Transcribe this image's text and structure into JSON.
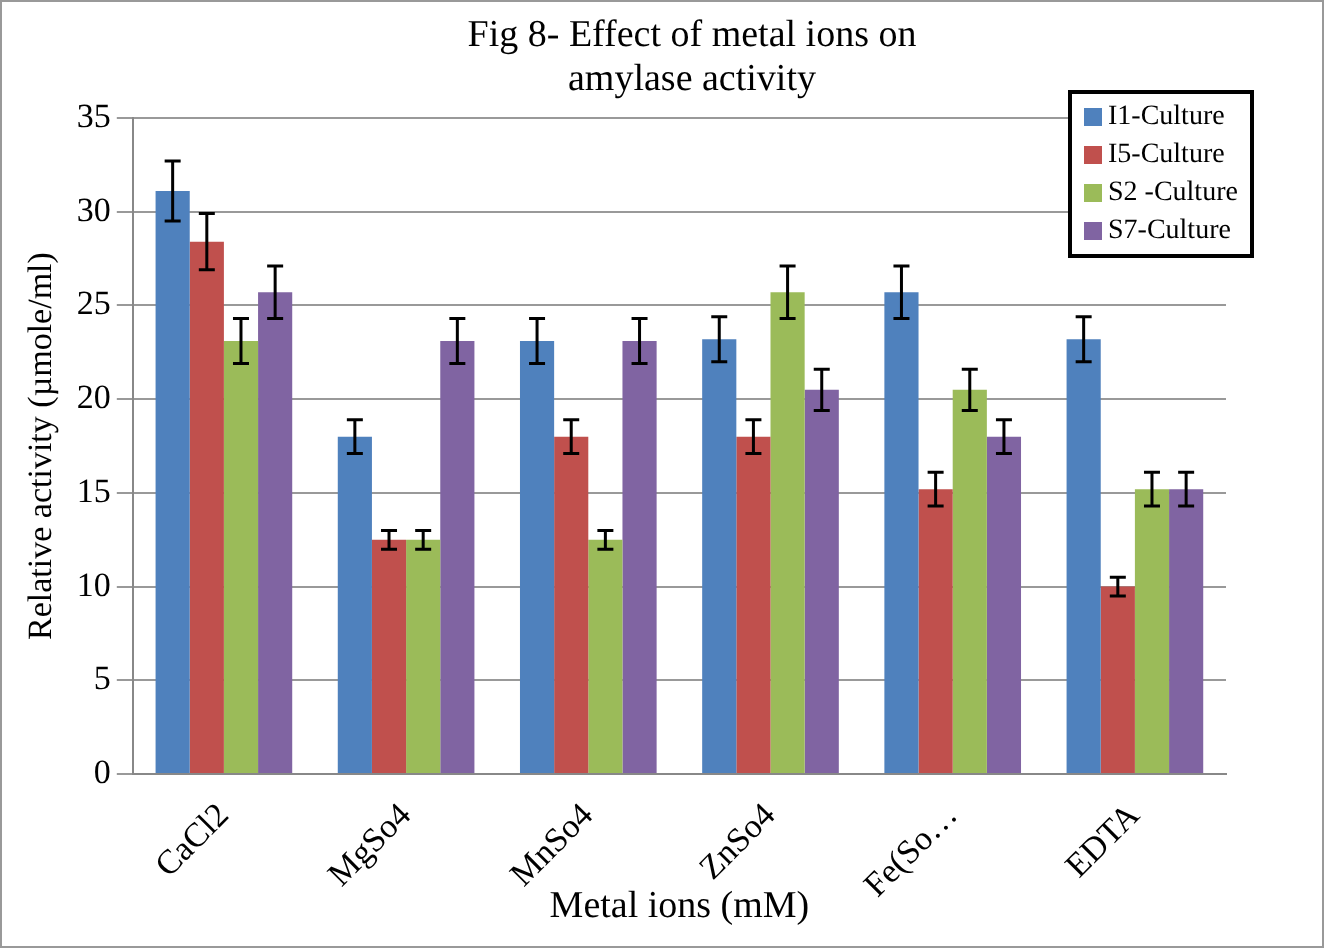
{
  "chart_data": {
    "type": "bar",
    "title": "Fig 8- Effect of metal ions on amylase activity",
    "xlabel": "Metal ions (mM)",
    "ylabel": "Relative activity (µmole/ml)",
    "categories": [
      "CaCl2",
      "MgSo4",
      "MnSo4",
      "ZnSo4",
      "Fe(So…",
      "EDTA"
    ],
    "series": [
      {
        "name": "I1-Culture",
        "color": "#4f81bd",
        "values": [
          31.1,
          18.0,
          23.1,
          23.2,
          25.7,
          23.2
        ],
        "errors": [
          1.6,
          0.9,
          1.2,
          1.2,
          1.4,
          1.2
        ]
      },
      {
        "name": "I5-Culture",
        "color": "#c0504d",
        "values": [
          28.4,
          12.5,
          18.0,
          18.0,
          15.2,
          10.0
        ],
        "errors": [
          1.5,
          0.5,
          0.9,
          0.9,
          0.9,
          0.5
        ]
      },
      {
        "name": "S2 -Culture",
        "color": "#9bbb59",
        "values": [
          23.1,
          12.5,
          12.5,
          25.7,
          20.5,
          15.2
        ],
        "errors": [
          1.2,
          0.5,
          0.5,
          1.4,
          1.1,
          0.9
        ]
      },
      {
        "name": "S7-Culture",
        "color": "#8064a2",
        "values": [
          25.7,
          23.1,
          23.1,
          20.5,
          18.0,
          15.2
        ],
        "errors": [
          1.4,
          1.2,
          1.2,
          1.1,
          0.9,
          0.9
        ]
      }
    ],
    "ylim": [
      0,
      35
    ],
    "yticks": [
      0,
      5,
      10,
      15,
      20,
      25,
      30,
      35
    ],
    "grid": "y",
    "legend": "top right"
  }
}
